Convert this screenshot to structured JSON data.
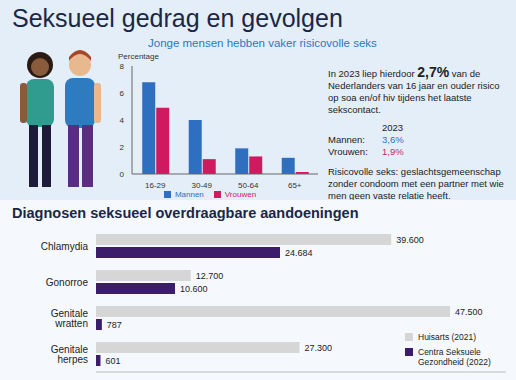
{
  "title": "Seksueel gedrag en gevolgen",
  "chart_data": [
    {
      "type": "bar",
      "title": "Jonge mensen hebben vaker risicovolle seks",
      "y_label": "Percentage",
      "categories": [
        "16-29",
        "30-49",
        "50-64",
        "65+"
      ],
      "series": [
        {
          "name": "Mannen",
          "color": "#2f6fbf",
          "values": [
            6.8,
            4.0,
            1.9,
            1.2
          ]
        },
        {
          "name": "Vrouwen",
          "color": "#cf1a5f",
          "values": [
            4.9,
            1.1,
            1.3,
            0.15
          ]
        }
      ],
      "ylim": [
        0,
        8
      ],
      "yticks": [
        0,
        2,
        4,
        6,
        8
      ],
      "grid": false,
      "legend": "bottom"
    },
    {
      "type": "bar",
      "title": "Diagnosen seksueel overdraagbare aandoeningen",
      "orientation": "horizontal",
      "categories": [
        "Chlamydia",
        "Gonorroe",
        "Genitale wratten",
        "Genitale herpes"
      ],
      "series": [
        {
          "name": "Huisarts (2021)",
          "color": "#d6d6d6",
          "values": [
            39600,
            12700,
            47500,
            27300
          ],
          "value_labels": [
            "39.600",
            "12.700",
            "47.500",
            "27.300"
          ]
        },
        {
          "name": "Centra Seksuele Gezondheid (2022)",
          "color": "#3b1d6b",
          "values": [
            24684,
            10600,
            787,
            601
          ],
          "value_labels": [
            "24.684",
            "10.600",
            "787",
            "601"
          ]
        }
      ],
      "xlim": [
        0,
        55000
      ],
      "grid": false,
      "data_labels": true,
      "tick_labels": "y",
      "legend": "lower right"
    }
  ],
  "info": {
    "intro_before": "In 2023 liep hierdoor",
    "intro_highlight": "2,7%",
    "intro_after": "van de Nederlanders van 16 jaar en ouder risico op soa en/of hiv tijdens het laatste sekscontact.",
    "year": "2023",
    "rows": [
      {
        "label": "Mannen:",
        "value": "3,6%",
        "color": "#2f6fbf"
      },
      {
        "label": "Vrouwen:",
        "value": "1,9%",
        "color": "#cf1a5f"
      }
    ],
    "definition": "Risicovolle seks: geslachtsgemeenschap zonder condoom met een partner met wie men geen vaste relatie heeft."
  }
}
